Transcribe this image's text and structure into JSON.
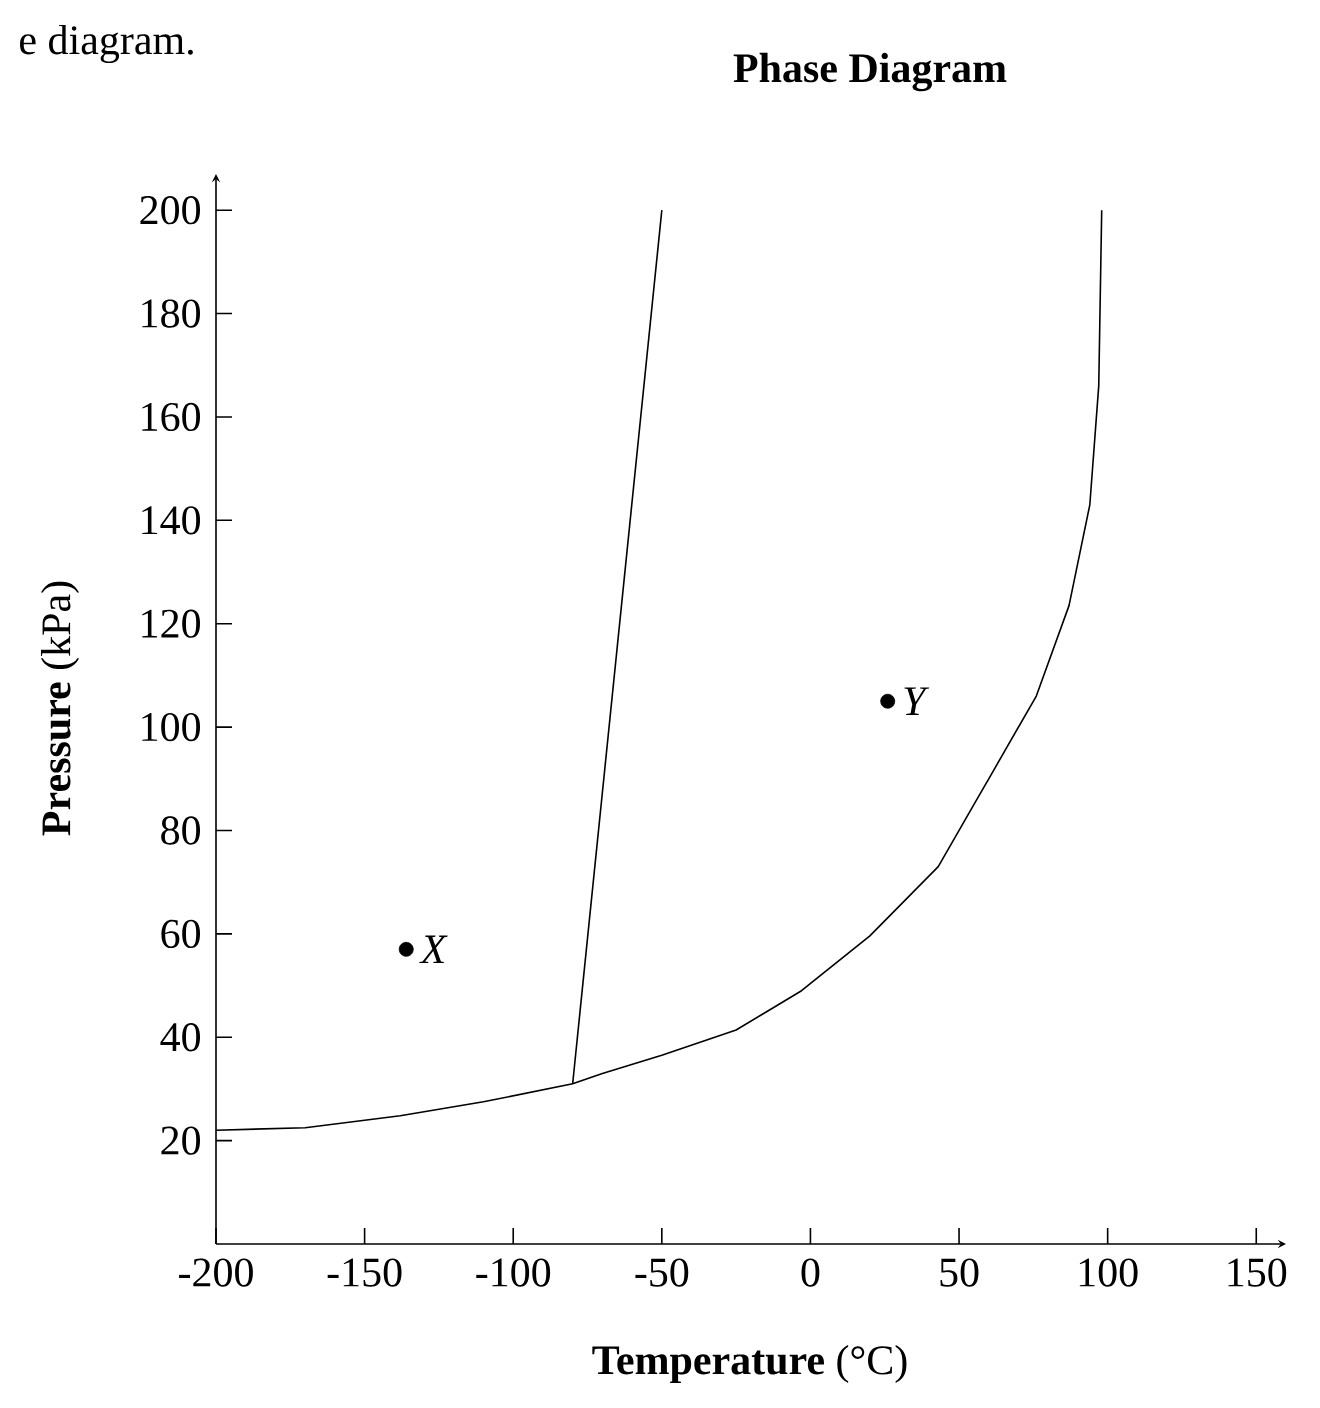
{
  "chart_data": {
    "type": "line",
    "title": "Phase Diagram",
    "xlabel": "**Temperature** (°C)",
    "ylabel": "**Pressure** (kPa)",
    "xlim": [
      -200,
      160
    ],
    "ylim": [
      0,
      207
    ],
    "xticks": [
      -200,
      -150,
      -100,
      -50,
      0,
      50,
      100,
      150
    ],
    "yticks": [
      20,
      40,
      60,
      80,
      100,
      120,
      140,
      160,
      180,
      200
    ],
    "series": [
      {
        "color": "#000000",
        "x": [
          -200,
          -170,
          -138,
          -110,
          -80,
          -70,
          -50,
          -25,
          -3,
          20,
          43,
          56,
          60,
          76,
          87,
          94,
          97,
          98
        ],
        "values": [
          22,
          22.5,
          24.8,
          27.5,
          31,
          33,
          36.5,
          41.4,
          49,
          59.6,
          73,
          86,
          90,
          106,
          123.5,
          143,
          166,
          200
        ]
      },
      {
        "color": "#000000",
        "x": [
          -80,
          -50
        ],
        "values": [
          31,
          200
        ]
      },
      {
        "type": "scatter",
        "color": "#000000",
        "marker": "circle",
        "x": [
          -136,
          26
        ],
        "values": [
          57,
          105
        ]
      }
    ],
    "annotations": [
      "e diagram.",
      {
        "text": "X",
        "x": -136,
        "y": 57
      },
      {
        "text": "Y",
        "x": 26,
        "y": 105
      }
    ]
  }
}
